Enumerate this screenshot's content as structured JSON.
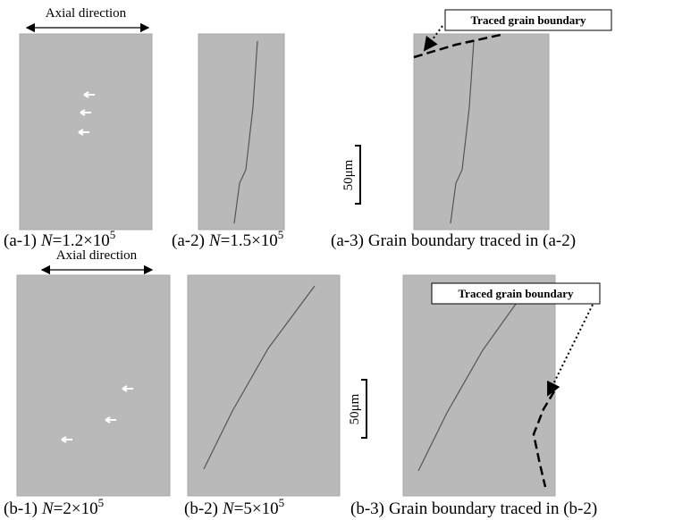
{
  "row_a": {
    "axis_label": "Axial direction",
    "trace_label": "Traced grain boundary",
    "scale_label": "50μm",
    "captions": [
      {
        "label": "(a-1)",
        "symbol": "N",
        "text": "=1.2×10",
        "exponent": "5"
      },
      {
        "label": "(a-2)",
        "symbol": "N",
        "text": "=1.5×10",
        "exponent": "5"
      },
      {
        "label": "(a-3)",
        "text": "Grain boundary traced in (a-2)"
      }
    ]
  },
  "row_b": {
    "axis_label": "Axial direction",
    "trace_label": "Traced grain boundary",
    "scale_label": "50μm",
    "captions": [
      {
        "label": "(b-1)",
        "symbol": "N",
        "text": "=2×10",
        "exponent": "5"
      },
      {
        "label": "(b-2)",
        "symbol": "N",
        "text": "=5×10",
        "exponent": "5"
      },
      {
        "label": "(b-3)",
        "text": "Grain boundary traced in (b-2)"
      }
    ]
  }
}
